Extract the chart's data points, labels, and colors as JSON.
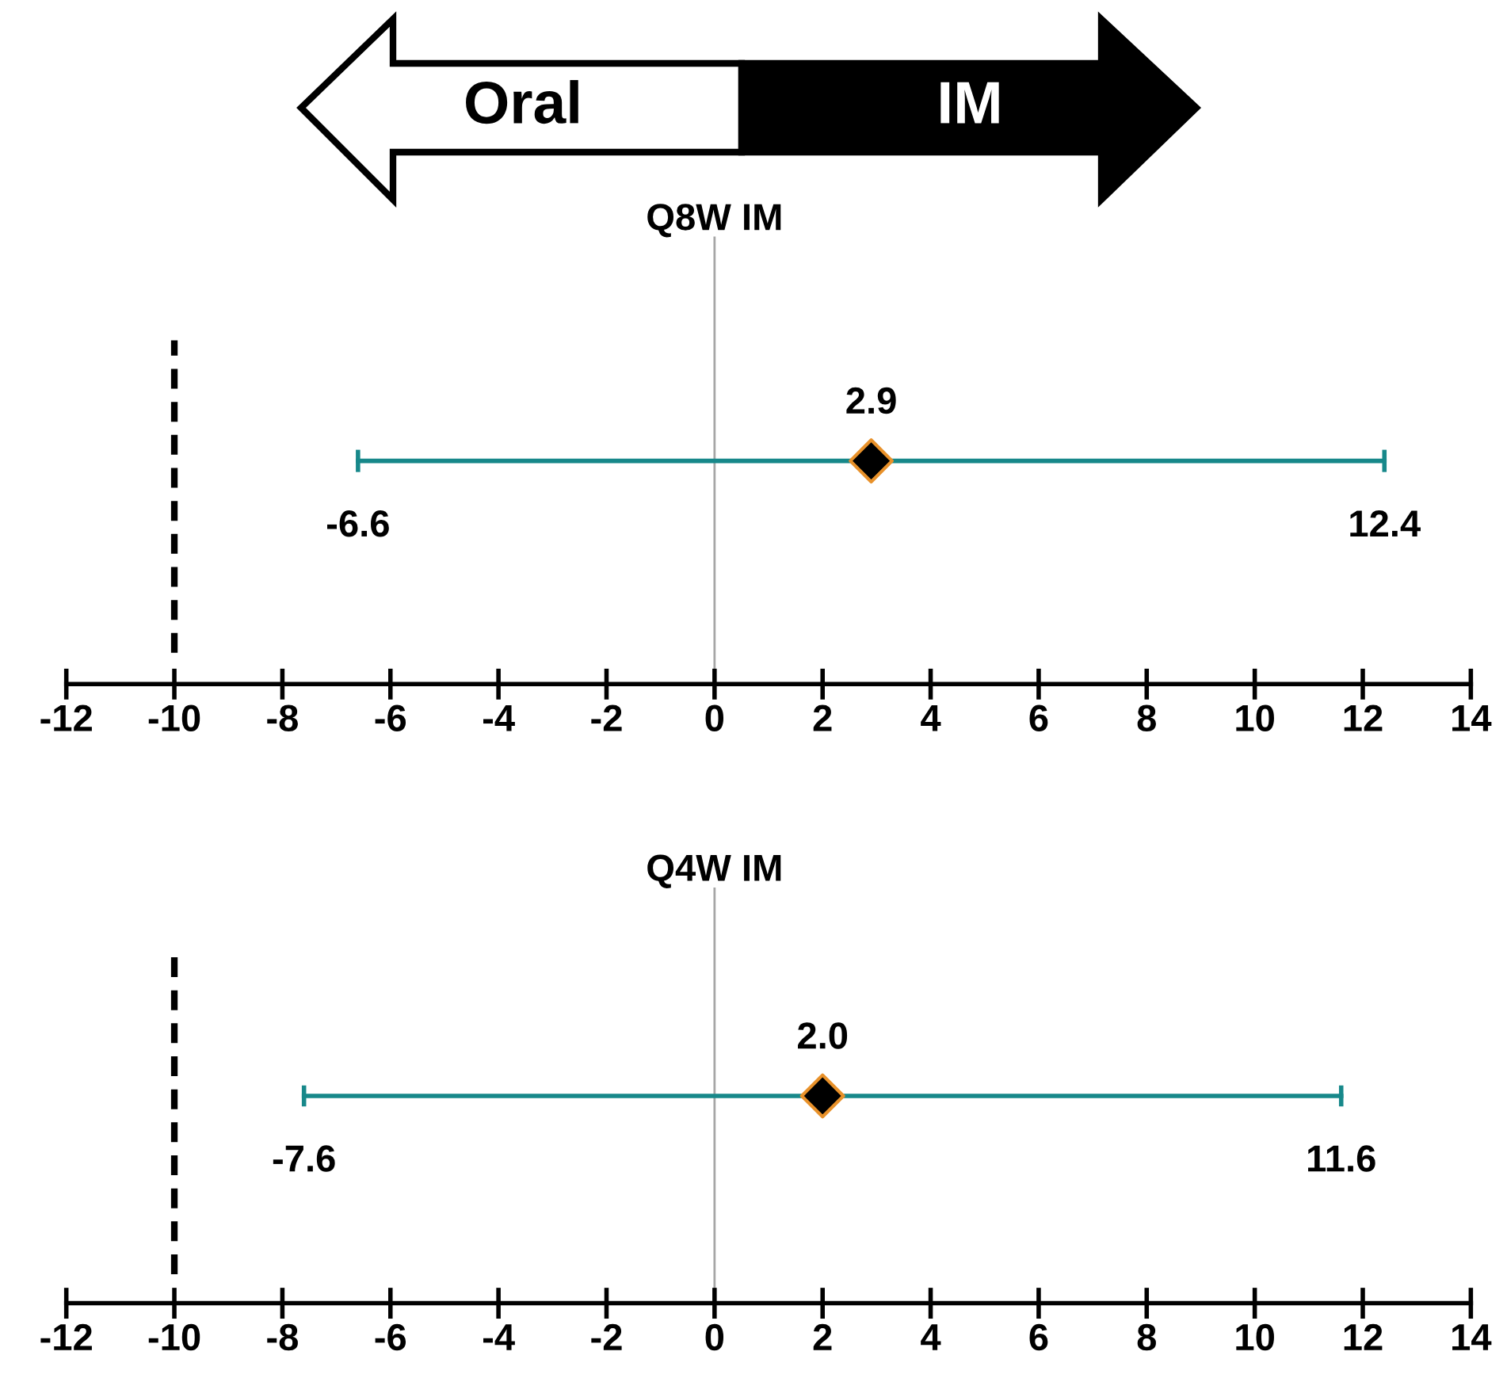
{
  "chart_data": [
    {
      "type": "scatter",
      "title": "Q8W IM",
      "orientation": "horizontal",
      "categories": [
        null
      ],
      "series": [
        {
          "color": "#000000",
          "values": [
            2.9
          ],
          "value_labels": [
            "2.9"
          ],
          "errors": [
            [
              -6.6,
              12.4
            ]
          ]
        }
      ],
      "marker": "diamond",
      "xlim": [
        -12,
        14
      ],
      "xticks": [
        -12,
        -10,
        -8,
        -6,
        -4,
        -2,
        0,
        2,
        4,
        6,
        8,
        10,
        12,
        14
      ],
      "tick_labels": "x",
      "ref_lines": [
        {
          "axis": "x",
          "value": -10,
          "color": "#000000",
          "line_style": "dashed"
        },
        {
          "axis": "x",
          "value": 0,
          "color": "#a6a6a6",
          "line_style": "solid"
        }
      ],
      "annotations": [
        "Oral",
        "IM",
        "-6.6",
        "12.4"
      ]
    },
    {
      "type": "scatter",
      "title": "Q4W IM",
      "orientation": "horizontal",
      "categories": [
        null
      ],
      "series": [
        {
          "color": "#000000",
          "values": [
            2.0
          ],
          "value_labels": [
            "2.0"
          ],
          "errors": [
            [
              -7.6,
              11.6
            ]
          ]
        }
      ],
      "marker": "diamond",
      "xlim": [
        -12,
        14
      ],
      "xticks": [
        -12,
        -10,
        -8,
        -6,
        -4,
        -2,
        0,
        2,
        4,
        6,
        8,
        10,
        12,
        14
      ],
      "tick_labels": "x",
      "ref_lines": [
        {
          "axis": "x",
          "value": -10,
          "color": "#000000",
          "line_style": "dashed"
        },
        {
          "axis": "x",
          "value": 0,
          "color": "#a6a6a6",
          "line_style": "solid"
        }
      ],
      "annotations": [
        "-7.6",
        "11.6"
      ]
    }
  ]
}
